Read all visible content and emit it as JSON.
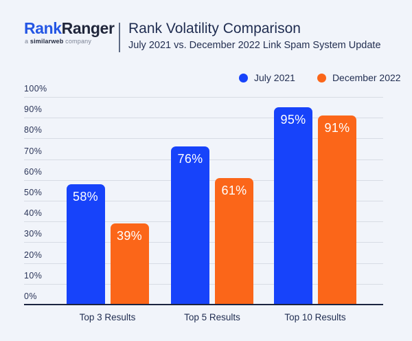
{
  "header": {
    "logo": {
      "part1": "Rank",
      "part2": "Ranger",
      "tagline_prefix": "a ",
      "tagline_brand": "similarweb",
      "tagline_suffix": " company"
    },
    "title": "Rank Volatility Comparison",
    "subtitle": "July 2021 vs. December 2022 Link Spam System Update"
  },
  "legend": [
    {
      "label": "July 2021",
      "color": "#1743FA"
    },
    {
      "label": "December 2022",
      "color": "#FB6619"
    }
  ],
  "chart_data": {
    "type": "bar",
    "title": "Rank Volatility Comparison",
    "subtitle": "July 2021 vs. December 2022 Link Spam System Update",
    "categories": [
      "Top 3 Results",
      "Top 5 Results",
      "Top 10 Results"
    ],
    "series": [
      {
        "name": "July 2021",
        "color": "#1743FA",
        "values": [
          58,
          76,
          95
        ]
      },
      {
        "name": "December 2022",
        "color": "#FB6619",
        "values": [
          39,
          61,
          91
        ]
      }
    ],
    "value_suffix": "%",
    "bar_value_labels": [
      "58%",
      "76%",
      "95%",
      "39%",
      "61%",
      "91%"
    ],
    "ylim": [
      0,
      100
    ],
    "ytick_step": 10,
    "ytick_labels": [
      "0%",
      "10%",
      "20%",
      "30%",
      "40%",
      "50%",
      "60%",
      "70%",
      "80%",
      "90%",
      "100%"
    ],
    "grid": true,
    "legend_position": "top-right",
    "value_label_position": "inside-top"
  },
  "colors": {
    "background": "#F1F4FA",
    "gridline": "#D7DBE4",
    "axis": "#1B2440",
    "dark_text": "#1F2C50",
    "logo_blue": "#2456E4",
    "logo_dark": "#20263B",
    "bar_blue": "#1743FA",
    "bar_orange": "#FB6619"
  }
}
